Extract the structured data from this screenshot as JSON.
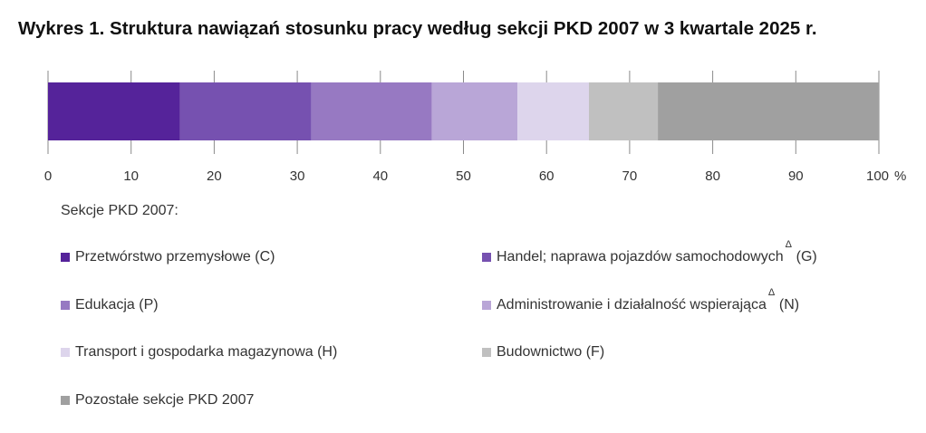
{
  "chart_data": {
    "type": "bar",
    "orientation": "horizontal-stacked",
    "title": "Wykres 1. Struktura nawiązań stosunku pracy według sekcji PKD 2007 w 3 kwartale 2025 r.",
    "xlim": [
      0,
      100
    ],
    "xticks": [
      "0",
      "10",
      "20",
      "30",
      "40",
      "50",
      "60",
      "70",
      "80",
      "90",
      "100"
    ],
    "x_unit": "%",
    "legend_title": "Sekcje PKD 2007:",
    "series": [
      {
        "name": "Przetwórstwo przemysłowe (C)",
        "value": 15.9,
        "color": "#55239a",
        "delta": false
      },
      {
        "name": "Handel; naprawa pojazdów samochodowych",
        "suffix": "(G)",
        "value": 15.8,
        "color": "#7651b0",
        "delta": true
      },
      {
        "name": "Edukacja (P)",
        "value": 14.5,
        "color": "#9779c2",
        "delta": false
      },
      {
        "name": "Administrowanie i działalność wspierająca",
        "suffix": "(N)",
        "value": 10.3,
        "color": "#b9a6d7",
        "delta": true
      },
      {
        "name": "Transport i gospodarka magazynowa (H)",
        "value": 8.6,
        "color": "#ddd5ec",
        "delta": false
      },
      {
        "name": "Budownictwo (F)",
        "value": 8.3,
        "color": "#c0c0c0",
        "delta": false
      },
      {
        "name": "Pozostałe sekcje PKD 2007",
        "value": 26.6,
        "color": "#a0a0a0",
        "delta": false
      }
    ],
    "delta_symbol": "Δ",
    "grid": false,
    "legend_position": "bottom"
  }
}
